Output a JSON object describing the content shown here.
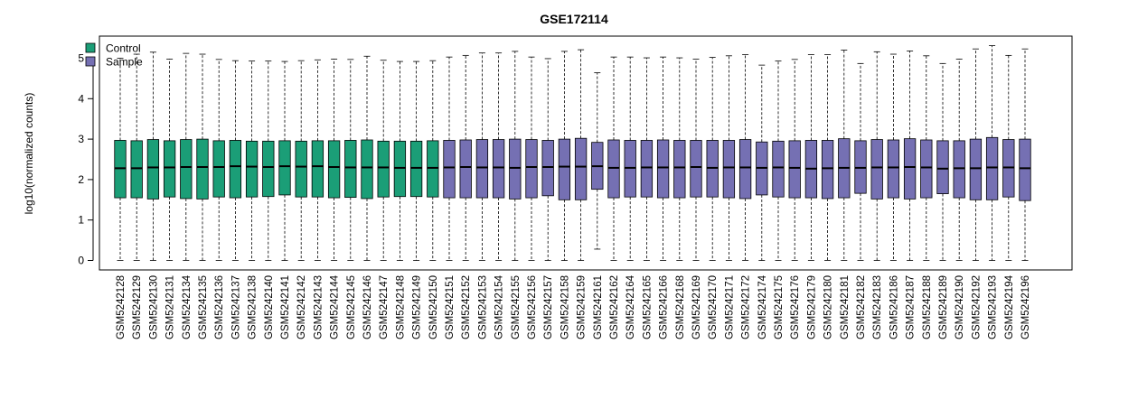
{
  "chart_data": {
    "type": "boxplot",
    "title": "GSE172114",
    "xlabel": "",
    "ylabel": "log10(normalized counts)",
    "ylim": [
      -0.25,
      5.5
    ],
    "yticks": [
      0,
      1,
      2,
      3,
      4,
      5
    ],
    "grid": false,
    "legend_position": "top-left",
    "legend": [
      {
        "name": "Control",
        "color": "#1B9E77"
      },
      {
        "name": "Sample",
        "color": "#7570B3"
      }
    ],
    "categories": [
      "GSM5242128",
      "GSM5242129",
      "GSM5242130",
      "GSM5242131",
      "GSM5242134",
      "GSM5242135",
      "GSM5242136",
      "GSM5242137",
      "GSM5242138",
      "GSM5242140",
      "GSM5242141",
      "GSM5242142",
      "GSM5242143",
      "GSM5242144",
      "GSM5242145",
      "GSM5242146",
      "GSM5242147",
      "GSM5242148",
      "GSM5242149",
      "GSM5242150",
      "GSM5242151",
      "GSM5242152",
      "GSM5242153",
      "GSM5242154",
      "GSM5242155",
      "GSM5242156",
      "GSM5242157",
      "GSM5242158",
      "GSM5242159",
      "GSM5242161",
      "GSM5242162",
      "GSM5242164",
      "GSM5242165",
      "GSM5242166",
      "GSM5242168",
      "GSM5242169",
      "GSM5242170",
      "GSM5242171",
      "GSM5242172",
      "GSM5242174",
      "GSM5242175",
      "GSM5242176",
      "GSM5242179",
      "GSM5242180",
      "GSM5242181",
      "GSM5242182",
      "GSM5242183",
      "GSM5242186",
      "GSM5242187",
      "GSM5242188",
      "GSM5242189",
      "GSM5242190",
      "GSM5242192",
      "GSM5242193",
      "GSM5242194",
      "GSM5242196"
    ],
    "groups": [
      "Control",
      "Control",
      "Control",
      "Control",
      "Control",
      "Control",
      "Control",
      "Control",
      "Control",
      "Control",
      "Control",
      "Control",
      "Control",
      "Control",
      "Control",
      "Control",
      "Control",
      "Control",
      "Control",
      "Control",
      "Sample",
      "Sample",
      "Sample",
      "Sample",
      "Sample",
      "Sample",
      "Sample",
      "Sample",
      "Sample",
      "Sample",
      "Sample",
      "Sample",
      "Sample",
      "Sample",
      "Sample",
      "Sample",
      "Sample",
      "Sample",
      "Sample",
      "Sample",
      "Sample",
      "Sample",
      "Sample",
      "Sample",
      "Sample",
      "Sample",
      "Sample",
      "Sample",
      "Sample",
      "Sample",
      "Sample",
      "Sample",
      "Sample",
      "Sample",
      "Sample",
      "Sample"
    ],
    "whisker_low": [
      0,
      0,
      0,
      0,
      0,
      0,
      0,
      0,
      0,
      0,
      0,
      0,
      0,
      0,
      0,
      0,
      0,
      0,
      0,
      0,
      0,
      0,
      0,
      0,
      0,
      0,
      0,
      0,
      0,
      0.28,
      0,
      0,
      0,
      0,
      0,
      0,
      0,
      0,
      0,
      0,
      0,
      0,
      0,
      0,
      0,
      0,
      0,
      0,
      0,
      0,
      0,
      0,
      0,
      0,
      0,
      0
    ],
    "q1": [
      1.55,
      1.55,
      1.52,
      1.57,
      1.53,
      1.52,
      1.57,
      1.55,
      1.57,
      1.58,
      1.62,
      1.57,
      1.57,
      1.55,
      1.56,
      1.53,
      1.57,
      1.58,
      1.58,
      1.57,
      1.55,
      1.55,
      1.55,
      1.55,
      1.52,
      1.55,
      1.6,
      1.5,
      1.5,
      1.76,
      1.55,
      1.57,
      1.57,
      1.55,
      1.55,
      1.57,
      1.57,
      1.55,
      1.53,
      1.62,
      1.57,
      1.55,
      1.55,
      1.53,
      1.55,
      1.66,
      1.52,
      1.55,
      1.52,
      1.55,
      1.65,
      1.55,
      1.5,
      1.5,
      1.57,
      1.48
    ],
    "median": [
      2.28,
      2.28,
      2.3,
      2.3,
      2.31,
      2.31,
      2.31,
      2.33,
      2.32,
      2.31,
      2.33,
      2.32,
      2.33,
      2.31,
      2.3,
      2.3,
      2.3,
      2.29,
      2.29,
      2.29,
      2.3,
      2.31,
      2.3,
      2.3,
      2.29,
      2.31,
      2.31,
      2.32,
      2.32,
      2.33,
      2.29,
      2.29,
      2.3,
      2.3,
      2.3,
      2.31,
      2.29,
      2.3,
      2.3,
      2.29,
      2.3,
      2.29,
      2.27,
      2.28,
      2.29,
      2.29,
      2.3,
      2.3,
      2.31,
      2.3,
      2.27,
      2.28,
      2.28,
      2.3,
      2.3,
      2.28
    ],
    "q3": [
      2.97,
      2.96,
      2.99,
      2.96,
      2.99,
      3.0,
      2.96,
      2.97,
      2.95,
      2.95,
      2.96,
      2.95,
      2.96,
      2.96,
      2.97,
      2.98,
      2.95,
      2.95,
      2.95,
      2.96,
      2.97,
      2.98,
      2.99,
      2.99,
      3.0,
      2.99,
      2.97,
      3.0,
      3.02,
      2.92,
      2.98,
      2.97,
      2.97,
      2.98,
      2.97,
      2.97,
      2.97,
      2.97,
      2.99,
      2.93,
      2.95,
      2.96,
      2.97,
      2.97,
      3.01,
      2.96,
      2.99,
      2.98,
      3.01,
      2.98,
      2.96,
      2.96,
      3.0,
      3.04,
      2.99,
      3.0
    ],
    "whisker_high": [
      5.0,
      5.1,
      5.15,
      4.98,
      5.12,
      5.1,
      4.97,
      4.94,
      4.93,
      4.93,
      4.92,
      4.94,
      4.96,
      4.98,
      4.97,
      5.05,
      4.95,
      4.92,
      4.92,
      4.94,
      5.03,
      5.07,
      5.13,
      5.13,
      5.17,
      5.03,
      4.99,
      5.17,
      5.21,
      4.64,
      5.03,
      5.03,
      5.01,
      5.03,
      5.01,
      4.98,
      5.02,
      5.06,
      5.09,
      4.83,
      4.93,
      4.97,
      5.09,
      5.09,
      5.2,
      4.87,
      5.16,
      5.1,
      5.18,
      5.06,
      4.87,
      4.98,
      5.23,
      5.31,
      5.07,
      5.23
    ]
  }
}
